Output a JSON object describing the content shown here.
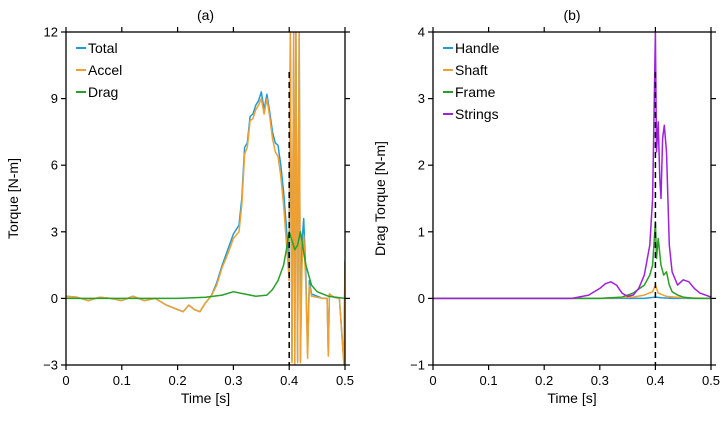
{
  "chart_data": [
    {
      "type": "line",
      "title": "(a)",
      "xlabel": "Time [s]",
      "ylabel": "Torque [N-m]",
      "xlim": [
        0,
        0.5
      ],
      "ylim": [
        -3,
        12
      ],
      "xticks": [
        "0",
        "0.1",
        "0.2",
        "0.3",
        "0.4",
        "0.5"
      ],
      "xtick_values": [
        0,
        0.1,
        0.2,
        0.3,
        0.4,
        0.5
      ],
      "yticks": [
        "−3",
        "0",
        "3",
        "6",
        "9",
        "12"
      ],
      "ytick_values": [
        -3,
        0,
        3,
        6,
        9,
        12
      ],
      "grid": false,
      "legend_position": "top-left",
      "vline": {
        "x": 0.4,
        "style": "dashed",
        "color": "#000000"
      },
      "series": [
        {
          "name": "Total",
          "color": "#1f9bd7",
          "x": [
            0,
            0.02,
            0.04,
            0.06,
            0.08,
            0.1,
            0.12,
            0.14,
            0.16,
            0.18,
            0.2,
            0.21,
            0.22,
            0.23,
            0.24,
            0.25,
            0.26,
            0.27,
            0.28,
            0.29,
            0.3,
            0.31,
            0.315,
            0.32,
            0.325,
            0.33,
            0.335,
            0.34,
            0.345,
            0.35,
            0.355,
            0.36,
            0.365,
            0.37,
            0.375,
            0.38,
            0.385,
            0.39,
            0.395,
            0.4,
            0.402,
            0.405,
            0.408,
            0.41,
            0.412,
            0.415,
            0.418,
            0.42,
            0.423,
            0.426,
            0.43,
            0.433,
            0.436,
            0.44,
            0.45,
            0.46,
            0.468,
            0.47,
            0.472,
            0.48,
            0.49,
            0.498,
            0.5
          ],
          "y": [
            0.1,
            0.05,
            -0.1,
            0.05,
            0.0,
            -0.1,
            0.1,
            -0.1,
            0.0,
            -0.3,
            -0.5,
            -0.6,
            -0.3,
            -0.5,
            -0.6,
            -0.2,
            0.1,
            0.7,
            1.5,
            2.2,
            2.9,
            3.3,
            4.5,
            6.8,
            7.0,
            8.2,
            8.3,
            8.7,
            8.9,
            9.3,
            8.5,
            9.2,
            8.4,
            7.5,
            7.0,
            6.9,
            6.0,
            4.8,
            3.2,
            1.5,
            12,
            -2.8,
            12,
            -2.9,
            12,
            -2.8,
            12,
            -2.8,
            2.5,
            3.6,
            1.0,
            -2.5,
            0.8,
            0.2,
            0.1,
            0.0,
            0.0,
            -2.5,
            0.2,
            0.05,
            0.0,
            -2.9,
            1.7
          ]
        },
        {
          "name": "Accel",
          "color": "#f0a030",
          "x": [
            0,
            0.02,
            0.04,
            0.06,
            0.08,
            0.1,
            0.12,
            0.14,
            0.16,
            0.18,
            0.2,
            0.21,
            0.22,
            0.23,
            0.24,
            0.25,
            0.26,
            0.27,
            0.28,
            0.29,
            0.3,
            0.31,
            0.315,
            0.32,
            0.325,
            0.33,
            0.335,
            0.34,
            0.345,
            0.35,
            0.355,
            0.36,
            0.365,
            0.37,
            0.375,
            0.38,
            0.385,
            0.39,
            0.395,
            0.4,
            0.402,
            0.405,
            0.408,
            0.41,
            0.412,
            0.415,
            0.418,
            0.42,
            0.423,
            0.426,
            0.43,
            0.433,
            0.436,
            0.44,
            0.45,
            0.46,
            0.468,
            0.47,
            0.472,
            0.48,
            0.49,
            0.498,
            0.5
          ],
          "y": [
            0.1,
            0.05,
            -0.1,
            0.05,
            0.0,
            -0.1,
            0.1,
            -0.1,
            0.0,
            -0.3,
            -0.5,
            -0.6,
            -0.3,
            -0.5,
            -0.6,
            -0.2,
            0.1,
            0.6,
            1.4,
            2.0,
            2.7,
            3.0,
            4.2,
            6.5,
            6.8,
            8.0,
            8.1,
            8.5,
            8.7,
            9.0,
            8.3,
            9.0,
            8.2,
            7.2,
            6.6,
            6.4,
            5.5,
            4.2,
            2.5,
            0.8,
            12,
            -2.9,
            12,
            -3.0,
            12,
            -2.9,
            12,
            -2.9,
            1.5,
            2.8,
            0.6,
            -2.7,
            0.6,
            0.1,
            0.05,
            0.0,
            0.0,
            -2.6,
            0.2,
            0.05,
            0.0,
            -3.0,
            1.6
          ]
        },
        {
          "name": "Drag",
          "color": "#28a028",
          "x": [
            0,
            0.1,
            0.2,
            0.25,
            0.28,
            0.3,
            0.32,
            0.34,
            0.36,
            0.37,
            0.38,
            0.39,
            0.395,
            0.4,
            0.405,
            0.41,
            0.415,
            0.42,
            0.43,
            0.44,
            0.45,
            0.47,
            0.5
          ],
          "y": [
            0.0,
            0.0,
            0.0,
            0.05,
            0.15,
            0.3,
            0.2,
            0.1,
            0.15,
            0.4,
            0.8,
            1.5,
            2.2,
            3.0,
            2.6,
            2.2,
            2.4,
            3.0,
            1.5,
            0.6,
            0.3,
            0.1,
            0.0
          ]
        }
      ]
    },
    {
      "type": "line",
      "title": "(b)",
      "xlabel": "Time [s]",
      "ylabel": "Drag Torque [N-m]",
      "xlim": [
        0,
        0.5
      ],
      "ylim": [
        -1,
        4
      ],
      "xticks": [
        "0",
        "0.1",
        "0.2",
        "0.3",
        "0.4",
        "0.5"
      ],
      "xtick_values": [
        0,
        0.1,
        0.2,
        0.3,
        0.4,
        0.5
      ],
      "yticks": [
        "−1",
        "0",
        "1",
        "2",
        "3",
        "4"
      ],
      "ytick_values": [
        -1,
        0,
        1,
        2,
        3,
        4
      ],
      "grid": false,
      "legend_position": "top-left",
      "vline": {
        "x": 0.4,
        "style": "dashed",
        "color": "#000000"
      },
      "series": [
        {
          "name": "Handle",
          "color": "#1f9bd7",
          "x": [
            0,
            0.3,
            0.38,
            0.4,
            0.41,
            0.43,
            0.5
          ],
          "y": [
            0.0,
            0.0,
            0.0,
            0.02,
            0.01,
            0.0,
            0.0
          ]
        },
        {
          "name": "Shaft",
          "color": "#f0a030",
          "x": [
            0,
            0.3,
            0.36,
            0.38,
            0.395,
            0.4,
            0.405,
            0.42,
            0.45,
            0.5
          ],
          "y": [
            0.0,
            0.0,
            0.02,
            0.05,
            0.1,
            0.2,
            0.08,
            0.03,
            0.01,
            0.0
          ]
        },
        {
          "name": "Frame",
          "color": "#28a028",
          "x": [
            0,
            0.3,
            0.34,
            0.36,
            0.38,
            0.39,
            0.395,
            0.4,
            0.402,
            0.405,
            0.41,
            0.415,
            0.42,
            0.425,
            0.43,
            0.44,
            0.45,
            0.47,
            0.5
          ],
          "y": [
            0.0,
            0.0,
            0.02,
            0.08,
            0.2,
            0.35,
            0.5,
            1.15,
            0.6,
            0.9,
            0.5,
            0.35,
            0.4,
            0.2,
            0.1,
            0.05,
            0.02,
            0.0,
            0.0
          ]
        },
        {
          "name": "Strings",
          "color": "#a020e0",
          "x": [
            0,
            0.25,
            0.28,
            0.3,
            0.31,
            0.32,
            0.33,
            0.34,
            0.35,
            0.36,
            0.37,
            0.38,
            0.39,
            0.395,
            0.4,
            0.402,
            0.405,
            0.408,
            0.41,
            0.413,
            0.416,
            0.42,
            0.425,
            0.43,
            0.44,
            0.45,
            0.46,
            0.47,
            0.48,
            0.5
          ],
          "y": [
            0.0,
            0.0,
            0.05,
            0.15,
            0.22,
            0.25,
            0.2,
            0.08,
            0.03,
            0.05,
            0.15,
            0.35,
            0.8,
            1.5,
            4.0,
            2.2,
            2.65,
            1.8,
            1.5,
            2.4,
            2.6,
            2.2,
            0.8,
            0.4,
            0.2,
            0.28,
            0.25,
            0.15,
            0.08,
            0.02
          ]
        }
      ]
    }
  ]
}
